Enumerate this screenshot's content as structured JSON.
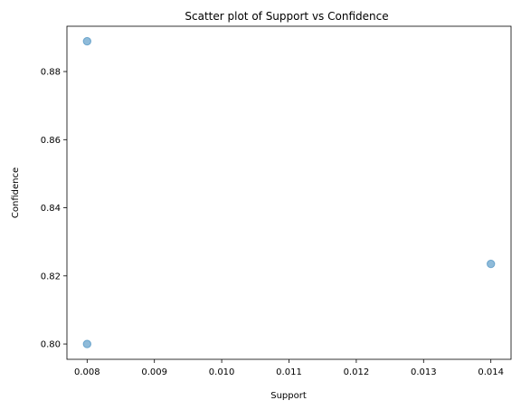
{
  "chart_data": {
    "type": "scatter",
    "title": "Scatter plot of Support vs Confidence",
    "xlabel": "Support",
    "ylabel": "Confidence",
    "x": [
      0.008,
      0.008,
      0.014
    ],
    "y": [
      0.8889,
      0.8,
      0.8235
    ],
    "xlim": [
      0.0077,
      0.0143
    ],
    "ylim": [
      0.7955,
      0.8933
    ],
    "xticks": [
      0.008,
      0.009,
      0.01,
      0.011,
      0.012,
      0.013,
      0.014
    ],
    "xtick_labels": [
      "0.008",
      "0.009",
      "0.010",
      "0.011",
      "0.012",
      "0.013",
      "0.014"
    ],
    "yticks": [
      0.8,
      0.82,
      0.84,
      0.86,
      0.88
    ],
    "ytick_labels": [
      "0.80",
      "0.82",
      "0.84",
      "0.86",
      "0.88"
    ],
    "grid": false,
    "marker_color": "#1f77b4",
    "marker_alpha": 0.5
  }
}
